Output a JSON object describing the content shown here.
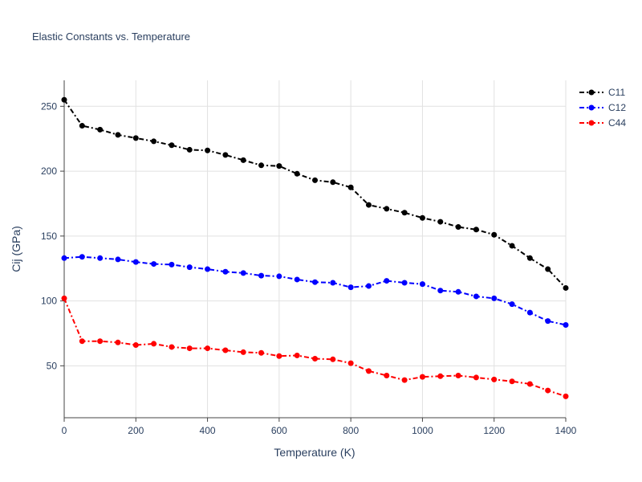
{
  "chart_data": {
    "type": "line",
    "title": "Elastic Constants vs. Temperature",
    "xlabel": "Temperature (K)",
    "ylabel": "Cij (GPa)",
    "xlim": [
      0,
      1400
    ],
    "ylim": [
      10,
      270
    ],
    "xticks": [
      0,
      200,
      400,
      600,
      800,
      1000,
      1200,
      1400
    ],
    "yticks": [
      50,
      100,
      150,
      200,
      250
    ],
    "grid": true,
    "legend_position": "top-right",
    "line_style": "dash-dot with markers",
    "x": [
      0,
      50,
      100,
      150,
      200,
      250,
      300,
      350,
      400,
      450,
      500,
      550,
      600,
      650,
      700,
      750,
      800,
      850,
      900,
      950,
      1000,
      1050,
      1100,
      1150,
      1200,
      1250,
      1300,
      1350,
      1400
    ],
    "series": [
      {
        "name": "C11",
        "color": "#000000",
        "values": [
          255,
          235,
          232,
          228,
          225.5,
          223,
          220,
          216.5,
          216,
          212.5,
          208.5,
          204.5,
          204,
          198,
          193,
          191.5,
          187.5,
          174,
          171,
          168,
          164,
          161,
          157,
          155,
          151,
          142.5,
          133,
          124.5,
          110
        ]
      },
      {
        "name": "C12",
        "color": "#0000ff",
        "values": [
          133,
          134,
          133,
          132,
          130,
          128.5,
          128,
          126,
          124.5,
          122.5,
          121.5,
          119.5,
          119,
          116.5,
          114.5,
          114,
          110.5,
          111.5,
          115.5,
          114,
          113,
          108,
          107,
          103.5,
          102,
          97.5,
          91,
          84.5,
          81.5
        ]
      },
      {
        "name": "C44",
        "color": "#ff0000",
        "values": [
          102,
          69,
          69,
          68,
          66,
          67,
          64.5,
          63.5,
          63.5,
          62,
          60.5,
          60,
          57.5,
          58,
          55.5,
          55,
          52,
          46,
          42.5,
          39,
          41.5,
          42,
          42.5,
          41,
          39.5,
          38,
          36,
          31,
          26.5
        ]
      }
    ]
  }
}
